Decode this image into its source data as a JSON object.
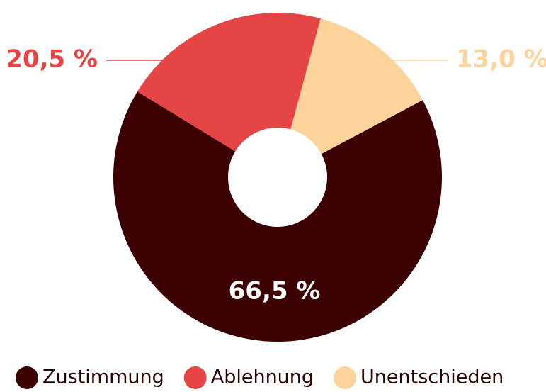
{
  "chart_data": {
    "type": "pie",
    "categories": [
      "Zustimmung",
      "Ablehnung",
      "Unentschieden"
    ],
    "values": [
      66.5,
      20.5,
      13.0
    ],
    "value_labels": [
      "66,5 %",
      "20,5 %",
      "13,0 %"
    ],
    "colors": [
      "#3d0000",
      "#e54545",
      "#fcd49b"
    ],
    "legend": "bottom"
  }
}
